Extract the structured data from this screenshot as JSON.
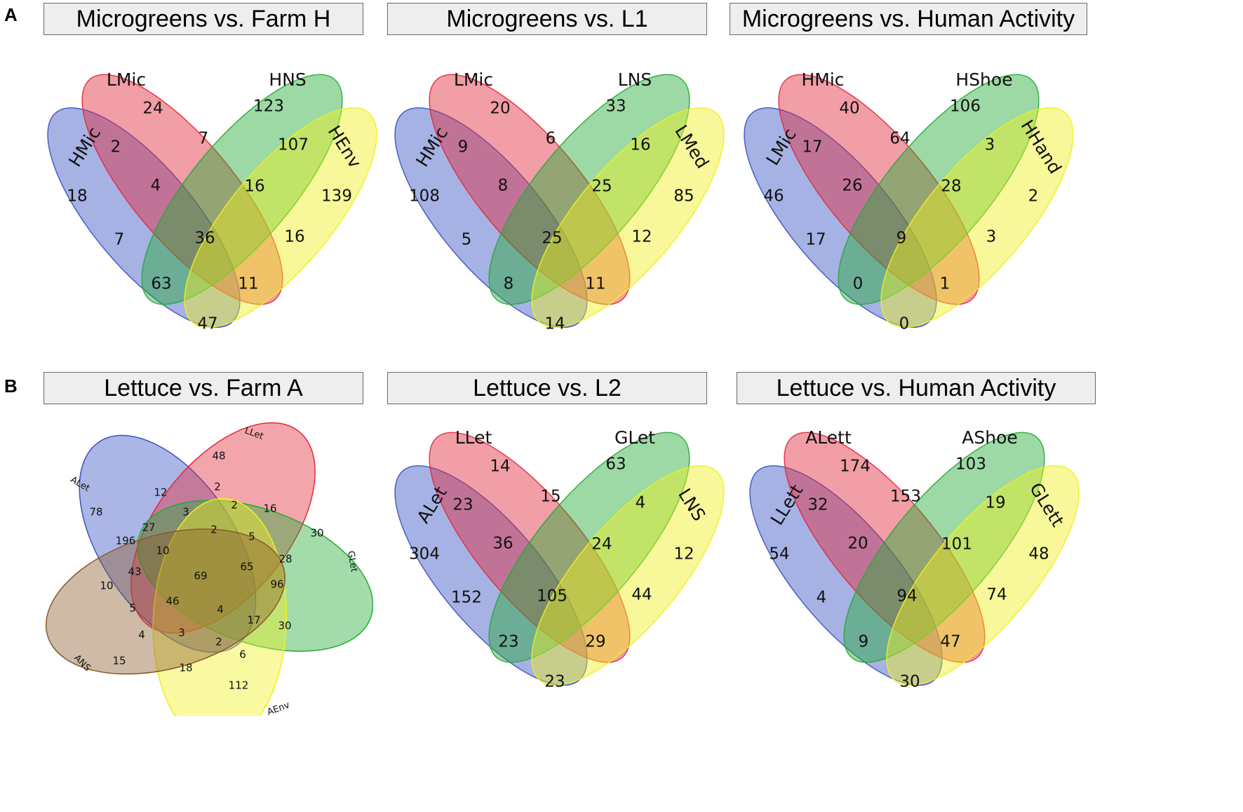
{
  "panels": {
    "A": {
      "label": "A",
      "diagrams": [
        {
          "title": "Microgreens vs. Farm H",
          "sets": [
            "HMic",
            "LMic",
            "HNS",
            "HEnv"
          ],
          "regions": {
            "s1": "18",
            "s2": "24",
            "s3": "123",
            "s4": "139",
            "s12": "2",
            "s23": "7",
            "s34": "107",
            "s123": "4",
            "s234": "16",
            "s13": "7",
            "s24": "16",
            "s1234": "36",
            "s134": "63",
            "s124": "11",
            "s14": "47"
          }
        },
        {
          "title": "Microgreens vs. L1",
          "sets": [
            "HMic",
            "LMic",
            "LNS",
            "LMed"
          ],
          "regions": {
            "s1": "108",
            "s2": "20",
            "s3": "33",
            "s4": "85",
            "s12": "9",
            "s23": "6",
            "s34": "16",
            "s123": "8",
            "s234": "25",
            "s13": "5",
            "s24": "12",
            "s1234": "25",
            "s134": "8",
            "s124": "11",
            "s14": "14"
          }
        },
        {
          "title": "Microgreens vs. Human Activity",
          "sets": [
            "LMic",
            "HMic",
            "HShoe",
            "HHand"
          ],
          "regions": {
            "s1": "46",
            "s2": "40",
            "s3": "106",
            "s4": "2",
            "s12": "17",
            "s23": "64",
            "s34": "3",
            "s123": "26",
            "s234": "28",
            "s13": "17",
            "s24": "3",
            "s1234": "9",
            "s134": "0",
            "s124": "1",
            "s14": "0"
          }
        }
      ]
    },
    "B": {
      "label": "B",
      "five_set": {
        "title": "Lettuce vs. Farm A",
        "sets": [
          "ALet",
          "LLet",
          "GLet",
          "AEnv",
          "ANS"
        ],
        "regions": [
          "78",
          "48",
          "30",
          "112",
          "15",
          "12",
          "2",
          "3",
          "2",
          "16",
          "27",
          "196",
          "10",
          "2",
          "5",
          "28",
          "43",
          "10",
          "69",
          "65",
          "96",
          "46",
          "5",
          "4",
          "17",
          "30",
          "4",
          "3",
          "2",
          "6",
          "18"
        ]
      },
      "diagrams": [
        {
          "title": "Lettuce vs. L2",
          "sets": [
            "ALet",
            "LLet",
            "GLet",
            "LNS"
          ],
          "regions": {
            "s1": "304",
            "s2": "14",
            "s3": "63",
            "s4": "12",
            "s12": "23",
            "s23": "15",
            "s34": "4",
            "s123": "36",
            "s234": "24",
            "s13": "152",
            "s24": "44",
            "s1234": "105",
            "s134": "23",
            "s124": "29",
            "s14": "23"
          }
        },
        {
          "title": "Lettuce vs. Human Activity",
          "sets": [
            "LLett",
            "ALett",
            "AShoe",
            "GLett"
          ],
          "regions": {
            "s1": "54",
            "s2": "174",
            "s3": "103",
            "s4": "48",
            "s12": "32",
            "s23": "153",
            "s34": "19",
            "s123": "20",
            "s234": "101",
            "s13": "4",
            "s24": "74",
            "s1234": "94",
            "s134": "9",
            "s124": "47",
            "s14": "30"
          }
        }
      ]
    }
  },
  "colors": {
    "set1": "#3a52c4",
    "set2": "#e2293a",
    "set3": "#23ab35",
    "set4": "#f0f020",
    "set5": "#8a5a2a"
  }
}
